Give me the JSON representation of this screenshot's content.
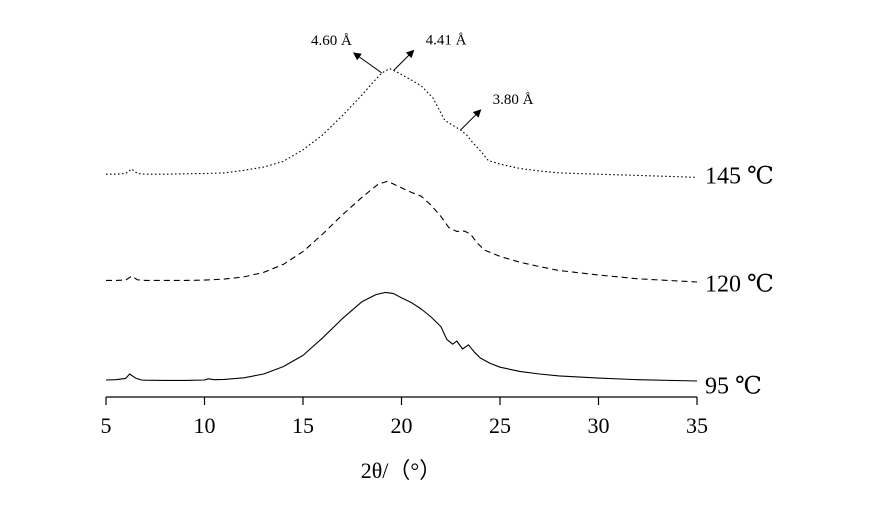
{
  "chart_data": {
    "type": "line",
    "title": "",
    "xlabel": "2θ/（°）",
    "ylabel": "",
    "xlim": [
      5,
      35
    ],
    "xticks": [
      "5",
      "10",
      "15",
      "20",
      "25",
      "30",
      "35"
    ],
    "grid": false,
    "series": [
      {
        "name": "95 ℃",
        "style": "solid",
        "x": [
          5,
          5.5,
          6,
          6.2,
          6.5,
          6.8,
          7,
          8,
          9,
          10,
          10.2,
          10.5,
          11,
          12,
          13,
          14,
          15,
          16,
          17,
          18,
          18.7,
          19.2,
          19.6,
          20,
          20.5,
          21,
          21.5,
          22,
          22.3,
          22.6,
          22.8,
          23.1,
          23.4,
          23.7,
          24,
          24.5,
          25,
          26,
          27,
          28,
          30,
          32,
          35
        ],
        "y": [
          0.3,
          0.4,
          0.8,
          2.2,
          0.9,
          0.3,
          0.25,
          0.2,
          0.2,
          0.3,
          0.7,
          0.4,
          0.5,
          1.0,
          2.2,
          4.5,
          8.0,
          13.5,
          19.5,
          24.8,
          27.0,
          27.7,
          27.3,
          26.0,
          24.5,
          22.5,
          20.0,
          17.0,
          13.0,
          11.5,
          12.5,
          10.0,
          11.3,
          9.0,
          7.2,
          5.5,
          4.3,
          3.0,
          2.2,
          1.6,
          0.9,
          0.4,
          0.0
        ]
      },
      {
        "name": "120 ℃",
        "style": "dashed",
        "x": [
          5,
          5.5,
          6,
          6.3,
          6.6,
          7,
          8,
          9,
          10,
          11,
          12,
          13,
          14,
          15,
          16,
          17,
          18,
          18.8,
          19.3,
          19.8,
          20.5,
          21,
          21.5,
          22,
          22.4,
          22.8,
          23.2,
          23.5,
          23.8,
          24.2,
          25,
          26,
          27,
          28,
          30,
          32,
          35
        ],
        "y": [
          0.5,
          0.5,
          0.6,
          1.8,
          0.7,
          0.5,
          0.5,
          0.5,
          0.6,
          0.9,
          1.6,
          3.0,
          5.5,
          9.5,
          15.0,
          21.0,
          26.5,
          30.5,
          31.5,
          30.0,
          28.0,
          26.8,
          24.0,
          20.5,
          17.0,
          15.8,
          15.9,
          15.0,
          12.5,
          10.0,
          8.0,
          6.2,
          4.8,
          3.6,
          2.2,
          1.0,
          0.0
        ]
      },
      {
        "name": "145 ℃",
        "style": "dotted",
        "x": [
          5,
          5.5,
          6,
          6.3,
          6.6,
          7,
          8,
          9,
          10,
          11,
          12,
          13,
          14,
          15,
          16,
          17,
          18,
          18.5,
          19,
          19.4,
          19.8,
          20.3,
          21,
          21.6,
          22.2,
          22.6,
          23,
          23.3,
          23.6,
          24,
          24.4,
          25,
          26,
          27,
          28,
          30,
          32,
          34,
          35
        ],
        "y": [
          1.2,
          1.2,
          1.4,
          2.8,
          1.4,
          1.2,
          1.2,
          1.3,
          1.4,
          1.6,
          2.4,
          3.4,
          5.2,
          8.8,
          13.5,
          19.5,
          26.0,
          29.5,
          32.8,
          34.2,
          33.0,
          31.3,
          28.8,
          25.0,
          18.0,
          16.5,
          15.0,
          13.5,
          11.2,
          8.5,
          5.5,
          4.3,
          3.0,
          2.2,
          1.6,
          1.2,
          0.8,
          0.4,
          0.2
        ]
      }
    ],
    "annotations": [
      {
        "text": "4.60 Å",
        "x": 19.0,
        "direction": "up-left"
      },
      {
        "text": "4.41 Å",
        "x": 19.6,
        "direction": "up-right"
      },
      {
        "text": "3.80 Å",
        "x": 23.0,
        "direction": "up-right"
      }
    ]
  }
}
